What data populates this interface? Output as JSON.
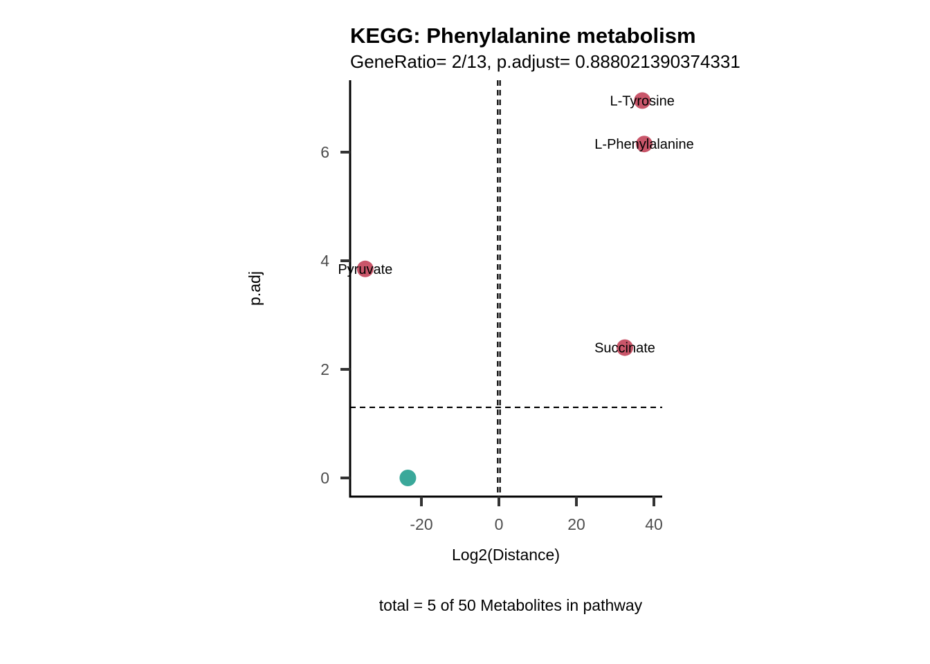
{
  "chart_data": {
    "type": "scatter",
    "title": "KEGG: Phenylalanine metabolism",
    "subtitle": "GeneRatio= 2/13, p.adjust= 0.888021390374331",
    "xlabel": "Log2(Distance)",
    "ylabel": "p.adj",
    "caption": "total = 5 of 50 Metabolites in pathway",
    "xlim": [
      -38,
      42
    ],
    "ylim": [
      -0.35,
      7.3
    ],
    "x_ticks": [
      -20,
      0,
      20,
      40
    ],
    "x_tick_labels": [
      "-20",
      "0",
      "20",
      "40"
    ],
    "y_ticks": [
      0,
      2,
      4,
      6
    ],
    "y_tick_labels": [
      "0",
      "2",
      "4",
      "6"
    ],
    "vlines": [
      -0.3,
      0.3
    ],
    "hline": 1.3,
    "grid": false,
    "legend": "none",
    "colors": {
      "up": "#c9566a",
      "down": "#3aa89a",
      "axis": "#000000",
      "tick": "#333333",
      "ref_line": "#000000"
    },
    "points": [
      {
        "label": "L-Tyrosine",
        "x": 37,
        "y": 6.95,
        "group": "up"
      },
      {
        "label": "L-Phenylalanine",
        "x": 37.5,
        "y": 6.15,
        "group": "up"
      },
      {
        "label": "Pyruvate",
        "x": -34.5,
        "y": 3.85,
        "group": "up"
      },
      {
        "label": "Succinate",
        "x": 32.5,
        "y": 2.4,
        "group": "up"
      },
      {
        "label": "",
        "x": -23.5,
        "y": 0.0,
        "group": "down"
      }
    ]
  }
}
